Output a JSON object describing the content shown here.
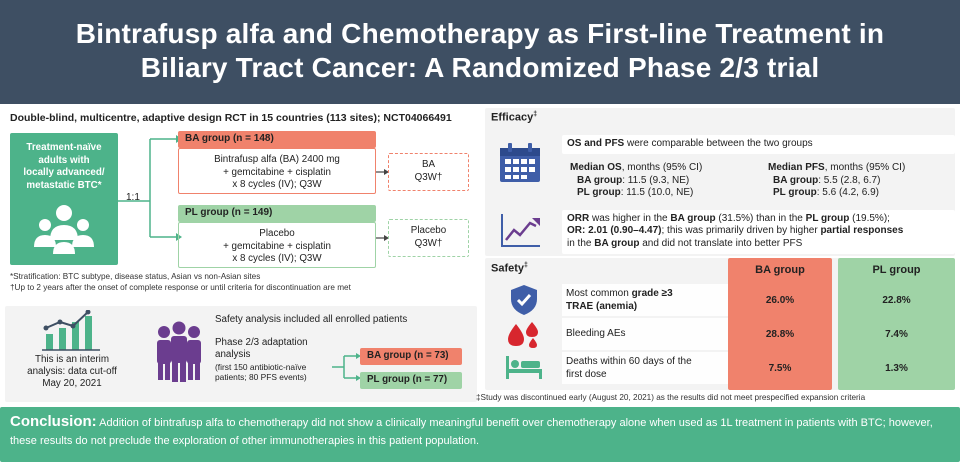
{
  "header": {
    "line1": "Bintrafusp alfa and Chemotherapy as First-line Treatment in",
    "line2": "Biliary Tract Cancer: A Randomized Phase 2/3 trial"
  },
  "design": {
    "title": "Double-blind, multicentre, adaptive design RCT in 15 countries (113 sites); NCT04066491",
    "population": [
      "Treatment-naïve",
      "adults with",
      "locally advanced/",
      "metastatic BTC*"
    ],
    "ratio": "1:1",
    "ba_group": {
      "label": "BA group (n = 148)",
      "regimen": [
        "Bintrafusp alfa (BA) 2400 mg",
        "+ gemcitabine + cisplatin",
        "x 8 cycles (IV); Q3W"
      ],
      "maintenance": [
        "BA",
        "Q3W†"
      ]
    },
    "pl_group": {
      "label": "PL group (n = 149)",
      "regimen": [
        "Placebo",
        "+ gemcitabine + cisplatin",
        "x 8 cycles (IV); Q3W"
      ],
      "maintenance": [
        "Placebo",
        "Q3W†"
      ]
    },
    "footnotes": [
      "*Stratification: BTC subtype, disease status, Asian vs non-Asian sites",
      "†Up to 2 years after the onset of complete response or until criteria for discontinuation are met"
    ]
  },
  "analysis": {
    "interim": [
      "This is an interim",
      "analysis: data cut-off",
      "May 20, 2021"
    ],
    "safety_all": "Safety analysis included all enrolled patients",
    "adaptation": [
      "Phase 2/3 adaptation",
      "analysis"
    ],
    "adaptation_detail": "(first 150 antibiotic-naïve patients; 80 PFS events)",
    "ba_n": "BA group (n = 73)",
    "pl_n": "PL group (n = 77)"
  },
  "efficacy": {
    "title": "Efficacy",
    "title_mark": "‡",
    "os_pfs_bold": "OS and PFS",
    "os_pfs_rest": " were comparable between the two groups",
    "median_os_bold": "Median OS",
    "median_os_rest": ", months (95% CI)",
    "os_ba_label": "BA group",
    "os_ba_value": ": 11.5 (9.3, NE)",
    "os_pl_label": "PL group",
    "os_pl_value": ": 11.5 (10.0, NE)",
    "median_pfs_bold": "Median PFS",
    "median_pfs_rest": ", months (95% CI)",
    "pfs_ba_label": "BA group",
    "pfs_ba_value": ": 5.5 (2.8, 6.7)",
    "pfs_pl_label": "PL group",
    "pfs_pl_value": ": 5.6 (4.2, 6.9)",
    "orr_1": "ORR",
    "orr_2": " was higher in the ",
    "orr_3": "BA group",
    "orr_4": " (31.5%) than in the ",
    "orr_5": "PL group",
    "orr_6": " (19.5%);",
    "or_bold": "OR: 2.01 (0.90–4.47)",
    "or_rest": "; this was primarily driven by higher ",
    "partial_bold": "partial responses",
    "in_the": "in the ",
    "ba_group_bold": "BA group",
    "did_not": " and did not translate into better PFS"
  },
  "safety": {
    "title": "Safety",
    "title_mark": "‡",
    "col_ba": "BA group",
    "col_pl": "PL group",
    "row1_a": "Most common ",
    "row1_b": "grade ≥3",
    "row1_c": "TRAE (anemia)",
    "row1_ba": "26.0%",
    "row1_pl": "22.8%",
    "row2": "Bleeding AEs",
    "row2_ba": "28.8%",
    "row2_pl": "7.4%",
    "row3_a": "Deaths within 60 days of the",
    "row3_b": "first dose",
    "row3_ba": "7.5%",
    "row3_pl": "1.3%",
    "footnote": "‡Study was discontinued early (August 20, 2021) as the results did not meet prespecified expansion criteria"
  },
  "conclusion": {
    "label": "Conclusion:",
    "text": "Addition of bintrafusp alfa to chemotherapy did not show a clinically meaningful benefit over chemotherapy alone when used as 1L treatment in patients with BTC; however, these results do not preclude the exploration of other immunotherapies in this patient population."
  },
  "colors": {
    "header": "#3e4f63",
    "ba": "#f0826c",
    "pl": "#9fd3a6",
    "accent_green": "#4db38a",
    "icon_blue": "#3f5ea8",
    "icon_purple": "#6b3d8f",
    "icon_red": "#d7262e"
  },
  "icons": [
    "people-group-icon",
    "calendar-icon",
    "trend-up-icon",
    "shield-check-icon",
    "blood-drops-icon",
    "hospital-bed-icon",
    "bar-chart-icon",
    "patients-icon"
  ]
}
